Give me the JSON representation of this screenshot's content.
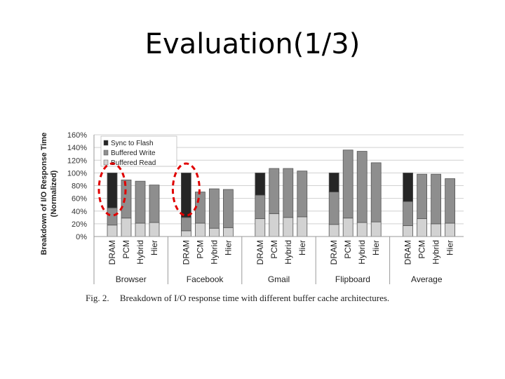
{
  "slide": {
    "title": "Evaluation(1/3)"
  },
  "caption": {
    "fig": "Fig. 2.",
    "text": "Breakdown of I/O response time with different buffer cache architectures."
  },
  "colors": {
    "sync": "#262626",
    "buffered_write": "#8e8e8e",
    "buffered_read": "#d2d2d2",
    "highlight": "#e00000",
    "grid": "#d0d0d0"
  },
  "chart_data": {
    "type": "bar",
    "stacked": true,
    "ylabel": "Breakdown of I/O Response Time (Normalized)",
    "ylim": [
      0,
      160
    ],
    "yticks": [
      0,
      20,
      40,
      60,
      80,
      100,
      120,
      140,
      160
    ],
    "ytick_labels": [
      "0%",
      "20%",
      "40%",
      "60%",
      "80%",
      "100%",
      "120%",
      "140%",
      "160%"
    ],
    "legend_position": "top-left",
    "legend": [
      "Sync to Flash",
      "Buffered Write",
      "Buffered Read"
    ],
    "groups": [
      {
        "name": "Browser",
        "bars": [
          {
            "label": "DRAM",
            "buffered_read": 18,
            "buffered_write": 27,
            "sync": 55
          },
          {
            "label": "PCM",
            "buffered_read": 29,
            "buffered_write": 60,
            "sync": 0
          },
          {
            "label": "Hybrid",
            "buffered_read": 21,
            "buffered_write": 66,
            "sync": 0
          },
          {
            "label": "Hier",
            "buffered_read": 22,
            "buffered_write": 59,
            "sync": 0
          }
        ]
      },
      {
        "name": "Facebook",
        "bars": [
          {
            "label": "DRAM",
            "buffered_read": 9,
            "buffered_write": 21,
            "sync": 70
          },
          {
            "label": "PCM",
            "buffered_read": 21,
            "buffered_write": 49,
            "sync": 0
          },
          {
            "label": "Hybrid",
            "buffered_read": 13,
            "buffered_write": 62,
            "sync": 0
          },
          {
            "label": "Hier",
            "buffered_read": 14,
            "buffered_write": 60,
            "sync": 0
          }
        ]
      },
      {
        "name": "Gmail",
        "bars": [
          {
            "label": "DRAM",
            "buffered_read": 28,
            "buffered_write": 37,
            "sync": 35
          },
          {
            "label": "PCM",
            "buffered_read": 36,
            "buffered_write": 71,
            "sync": 0
          },
          {
            "label": "Hybrid",
            "buffered_read": 30,
            "buffered_write": 77,
            "sync": 0
          },
          {
            "label": "Hier",
            "buffered_read": 31,
            "buffered_write": 72,
            "sync": 0
          }
        ]
      },
      {
        "name": "Flipboard",
        "bars": [
          {
            "label": "DRAM",
            "buffered_read": 19,
            "buffered_write": 51,
            "sync": 30
          },
          {
            "label": "PCM",
            "buffered_read": 29,
            "buffered_write": 107,
            "sync": 0
          },
          {
            "label": "Hybrid",
            "buffered_read": 22,
            "buffered_write": 112,
            "sync": 0
          },
          {
            "label": "Hier",
            "buffered_read": 23,
            "buffered_write": 93,
            "sync": 0
          }
        ]
      },
      {
        "name": "Average",
        "bars": [
          {
            "label": "DRAM",
            "buffered_read": 17,
            "buffered_write": 38,
            "sync": 45
          },
          {
            "label": "PCM",
            "buffered_read": 28,
            "buffered_write": 70,
            "sync": 0
          },
          {
            "label": "Hybrid",
            "buffered_read": 20,
            "buffered_write": 78,
            "sync": 0
          },
          {
            "label": "Hier",
            "buffered_read": 21,
            "buffered_write": 70,
            "sync": 0
          }
        ]
      }
    ],
    "annotations": [
      {
        "type": "dashed-ellipse",
        "group": "Browser",
        "bar": "DRAM"
      },
      {
        "type": "dashed-ellipse",
        "group": "Facebook",
        "bar": "DRAM"
      }
    ]
  }
}
